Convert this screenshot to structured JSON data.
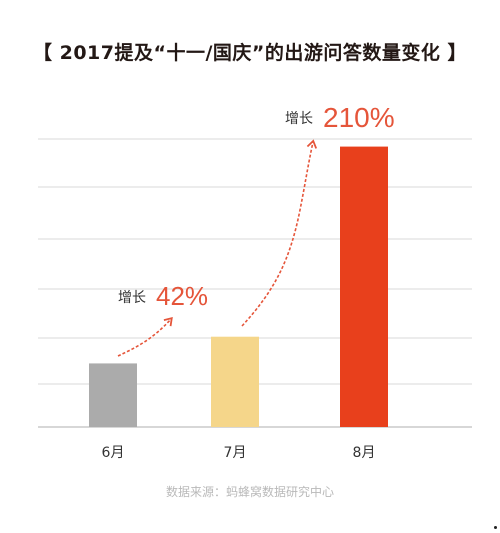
{
  "title": "【 2017提及“十一/国庆”的出游问答数量变化 】",
  "source": "数据来源：蚂蜂窝数据研究中心",
  "chart_data": {
    "type": "bar",
    "categories": [
      "6月",
      "7月",
      "8月"
    ],
    "values": [
      1.0,
      1.42,
      4.41
    ],
    "colors": [
      "#ababab",
      "#f5d68a",
      "#e8401c"
    ],
    "grid": true,
    "ylim": [
      0,
      5.3
    ],
    "annotations": [
      {
        "from": "6月",
        "to": "7月",
        "label": "增长",
        "value": "42%"
      },
      {
        "from": "7月",
        "to": "8月",
        "label": "增长",
        "value": "210%"
      }
    ],
    "annotation_color": "#e5553a"
  }
}
